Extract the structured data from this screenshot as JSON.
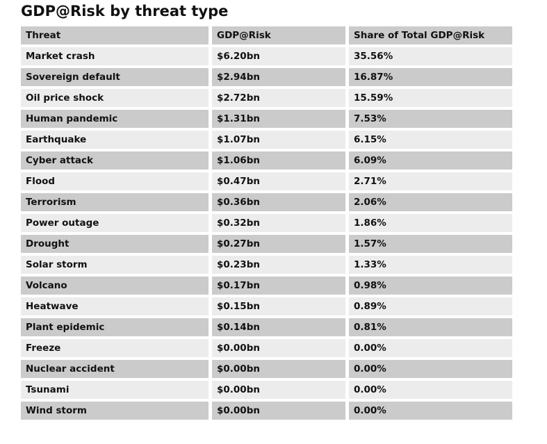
{
  "title": "GDP@Risk by threat type",
  "colors": {
    "header_row_bg": "#cbcbcb",
    "even_row_bg": "#cbcbcb",
    "odd_row_bg": "#ececec",
    "text": "#111111",
    "page_bg": "#ffffff"
  },
  "chart_data": {
    "type": "table",
    "title": "GDP@Risk by threat type",
    "columns": [
      "Threat",
      "GDP@Risk",
      "Share of Total GDP@Risk"
    ],
    "rows": [
      [
        "Market crash",
        "$6.20bn",
        "35.56%"
      ],
      [
        "Sovereign default",
        "$2.94bn",
        "16.87%"
      ],
      [
        "Oil price shock",
        "$2.72bn",
        "15.59%"
      ],
      [
        "Human pandemic",
        "$1.31bn",
        "7.53%"
      ],
      [
        "Earthquake",
        "$1.07bn",
        "6.15%"
      ],
      [
        "Cyber attack",
        "$1.06bn",
        "6.09%"
      ],
      [
        "Flood",
        "$0.47bn",
        "2.71%"
      ],
      [
        "Terrorism",
        "$0.36bn",
        "2.06%"
      ],
      [
        "Power outage",
        "$0.32bn",
        "1.86%"
      ],
      [
        "Drought",
        "$0.27bn",
        "1.57%"
      ],
      [
        "Solar storm",
        "$0.23bn",
        "1.33%"
      ],
      [
        "Volcano",
        "$0.17bn",
        "0.98%"
      ],
      [
        "Heatwave",
        "$0.15bn",
        "0.89%"
      ],
      [
        "Plant epidemic",
        "$0.14bn",
        "0.81%"
      ],
      [
        "Freeze",
        "$0.00bn",
        "0.00%"
      ],
      [
        "Nuclear accident",
        "$0.00bn",
        "0.00%"
      ],
      [
        "Tsunami",
        "$0.00bn",
        "0.00%"
      ],
      [
        "Wind storm",
        "$0.00bn",
        "0.00%"
      ]
    ],
    "gdp_at_risk_bn": [
      6.2,
      2.94,
      2.72,
      1.31,
      1.07,
      1.06,
      0.47,
      0.36,
      0.32,
      0.27,
      0.23,
      0.17,
      0.15,
      0.14,
      0.0,
      0.0,
      0.0,
      0.0
    ],
    "share_of_total_pct": [
      35.56,
      16.87,
      15.59,
      7.53,
      6.15,
      6.09,
      2.71,
      2.06,
      1.86,
      1.57,
      1.33,
      0.98,
      0.89,
      0.81,
      0.0,
      0.0,
      0.0,
      0.0
    ]
  }
}
